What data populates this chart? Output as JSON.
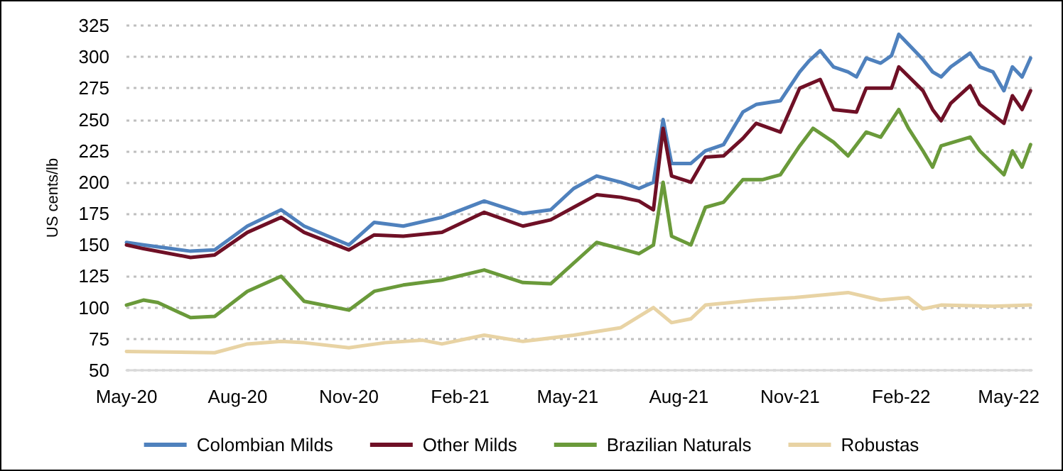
{
  "chart_data": {
    "type": "line",
    "ylabel": "US cents/lb",
    "ylim": [
      50,
      325
    ],
    "yticks": [
      50,
      75,
      100,
      125,
      150,
      175,
      200,
      225,
      250,
      275,
      300,
      325
    ],
    "xlim": [
      "2020-05-01",
      "2022-05-20"
    ],
    "xticks": [
      {
        "value": "2020-05-01",
        "label": "May-20"
      },
      {
        "value": "2020-08-01",
        "label": "Aug-20"
      },
      {
        "value": "2020-11-01",
        "label": "Nov-20"
      },
      {
        "value": "2021-02-01",
        "label": "Feb-21"
      },
      {
        "value": "2021-05-01",
        "label": "May-21"
      },
      {
        "value": "2021-08-01",
        "label": "Aug-21"
      },
      {
        "value": "2021-11-01",
        "label": "Nov-21"
      },
      {
        "value": "2022-02-01",
        "label": "Feb-22"
      },
      {
        "value": "2022-05-01",
        "label": "May-22"
      }
    ],
    "grid": "y",
    "legend": "bottom",
    "marker": "none",
    "line_style": "solid",
    "series": [
      {
        "name": "Colombian Milds",
        "color": "#4f81bd",
        "x": [
          "2020-05-01",
          "2020-05-15",
          "2020-06-23",
          "2020-07-13",
          "2020-08-09",
          "2020-09-06",
          "2020-09-25",
          "2020-11-01",
          "2020-11-22",
          "2020-12-16",
          "2021-01-17",
          "2021-02-21",
          "2021-03-25",
          "2021-04-17",
          "2021-05-06",
          "2021-05-25",
          "2021-06-14",
          "2021-06-29",
          "2021-07-11",
          "2021-07-19",
          "2021-07-26",
          "2021-08-11",
          "2021-08-23",
          "2021-09-07",
          "2021-09-23",
          "2021-10-04",
          "2021-10-24",
          "2021-11-09",
          "2021-11-17",
          "2021-11-26",
          "2021-12-07",
          "2021-12-19",
          "2021-12-26",
          "2022-01-03",
          "2022-01-15",
          "2022-01-24",
          "2022-01-30",
          "2022-02-07",
          "2022-02-19",
          "2022-02-27",
          "2022-03-06",
          "2022-03-14",
          "2022-03-30",
          "2022-04-07",
          "2022-04-18",
          "2022-04-27",
          "2022-05-04",
          "2022-05-12",
          "2022-05-19"
        ],
        "values": [
          152,
          150,
          145,
          146,
          165,
          178,
          165,
          150,
          168,
          165,
          172,
          185,
          175,
          178,
          195,
          205,
          200,
          195,
          200,
          250,
          215,
          215,
          225,
          230,
          256,
          262,
          265,
          288,
          297,
          305,
          292,
          288,
          284,
          299,
          295,
          301,
          318,
          310,
          298,
          288,
          284,
          292,
          303,
          292,
          288,
          273,
          292,
          284,
          299
        ]
      },
      {
        "name": "Other Milds",
        "color": "#6f1026",
        "x": [
          "2020-05-01",
          "2020-05-15",
          "2020-06-23",
          "2020-07-13",
          "2020-08-09",
          "2020-09-06",
          "2020-09-25",
          "2020-11-01",
          "2020-11-22",
          "2020-12-16",
          "2021-01-17",
          "2021-02-21",
          "2021-03-25",
          "2021-04-17",
          "2021-05-06",
          "2021-05-25",
          "2021-06-14",
          "2021-06-29",
          "2021-07-11",
          "2021-07-19",
          "2021-07-26",
          "2021-08-11",
          "2021-08-23",
          "2021-09-07",
          "2021-09-23",
          "2021-10-04",
          "2021-10-24",
          "2021-11-09",
          "2021-11-26",
          "2021-12-07",
          "2021-12-26",
          "2022-01-03",
          "2022-01-24",
          "2022-01-30",
          "2022-02-19",
          "2022-02-27",
          "2022-03-06",
          "2022-03-14",
          "2022-03-30",
          "2022-04-07",
          "2022-04-27",
          "2022-05-04",
          "2022-05-12",
          "2022-05-19"
        ],
        "values": [
          150,
          147,
          140,
          142,
          160,
          172,
          160,
          146,
          158,
          157,
          160,
          176,
          165,
          170,
          180,
          190,
          188,
          185,
          178,
          243,
          205,
          200,
          220,
          221,
          235,
          247,
          240,
          275,
          282,
          258,
          256,
          275,
          275,
          292,
          273,
          258,
          249,
          263,
          277,
          262,
          247,
          269,
          258,
          273
        ]
      },
      {
        "name": "Brazilian Naturals",
        "color": "#6a9a3a",
        "x": [
          "2020-05-01",
          "2020-05-15",
          "2020-05-27",
          "2020-06-23",
          "2020-07-13",
          "2020-08-09",
          "2020-09-06",
          "2020-09-25",
          "2020-11-01",
          "2020-11-22",
          "2020-12-16",
          "2021-01-17",
          "2021-02-21",
          "2021-03-25",
          "2021-04-17",
          "2021-05-25",
          "2021-06-14",
          "2021-06-29",
          "2021-07-11",
          "2021-07-19",
          "2021-07-26",
          "2021-08-11",
          "2021-08-23",
          "2021-09-07",
          "2021-09-23",
          "2021-10-09",
          "2021-10-24",
          "2021-11-09",
          "2021-11-20",
          "2021-12-07",
          "2021-12-19",
          "2022-01-03",
          "2022-01-15",
          "2022-01-30",
          "2022-02-07",
          "2022-02-19",
          "2022-02-27",
          "2022-03-06",
          "2022-03-30",
          "2022-04-07",
          "2022-04-27",
          "2022-05-04",
          "2022-05-12",
          "2022-05-19"
        ],
        "values": [
          102,
          106,
          104,
          92,
          93,
          113,
          125,
          105,
          98,
          113,
          118,
          122,
          130,
          120,
          119,
          152,
          147,
          143,
          150,
          200,
          157,
          150,
          180,
          184,
          202,
          202,
          206,
          229,
          243,
          232,
          221,
          240,
          236,
          258,
          243,
          225,
          212,
          229,
          236,
          225,
          206,
          225,
          212,
          230
        ]
      },
      {
        "name": "Robustas",
        "color": "#e8d3a4",
        "x": [
          "2020-05-01",
          "2020-07-13",
          "2020-08-09",
          "2020-09-06",
          "2020-09-25",
          "2020-11-01",
          "2020-12-01",
          "2021-01-01",
          "2021-01-17",
          "2021-02-21",
          "2021-03-25",
          "2021-05-06",
          "2021-06-14",
          "2021-07-11",
          "2021-07-26",
          "2021-08-11",
          "2021-08-23",
          "2021-10-04",
          "2021-11-05",
          "2021-12-19",
          "2022-01-15",
          "2022-02-07",
          "2022-02-19",
          "2022-03-06",
          "2022-04-18",
          "2022-05-19"
        ],
        "values": [
          65,
          64,
          71,
          73,
          72,
          68,
          72,
          74,
          71,
          78,
          73,
          78,
          84,
          100,
          88,
          91,
          102,
          106,
          108,
          112,
          106,
          108,
          99,
          102,
          101,
          102
        ]
      }
    ]
  }
}
